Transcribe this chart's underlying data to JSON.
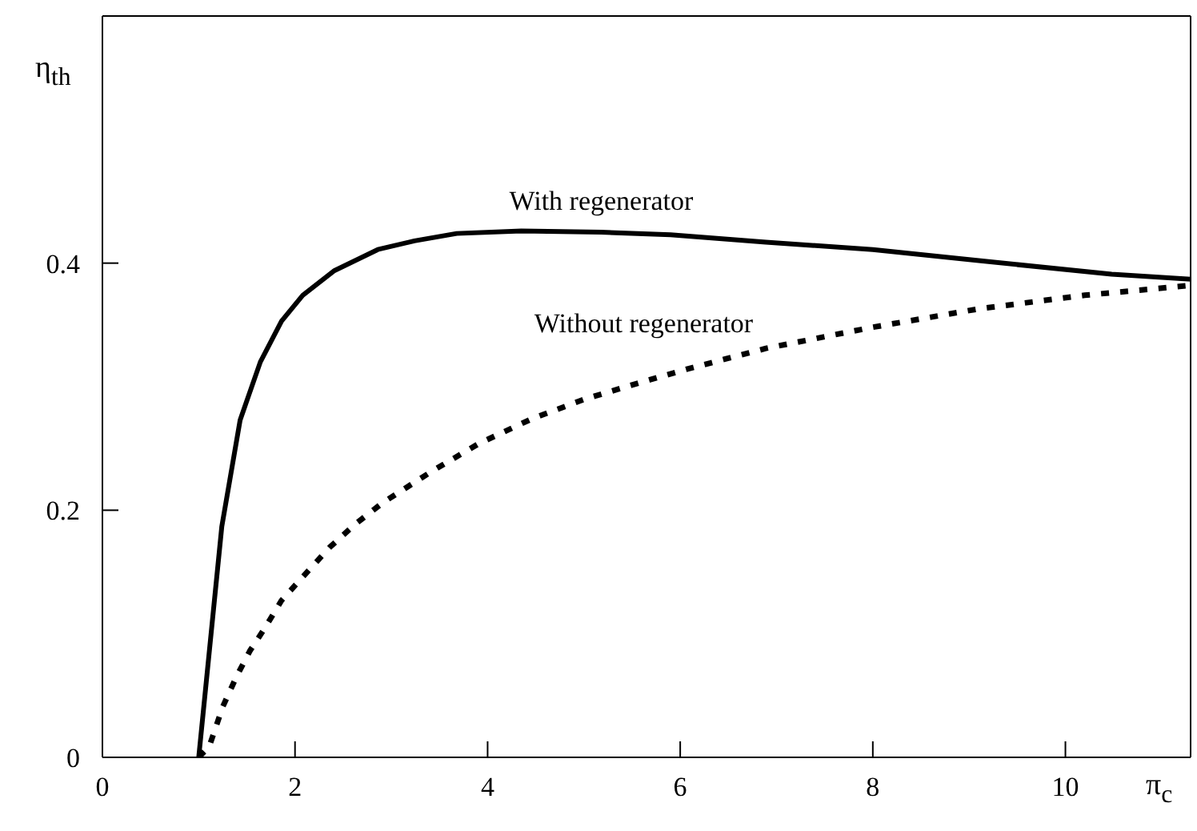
{
  "chart_data": {
    "type": "line",
    "xlabel": "π$_{c}$",
    "ylabel": "η$_{th}$",
    "xlim": [
      0,
      11.3
    ],
    "xticks": [
      0,
      2,
      4,
      6,
      8,
      10
    ],
    "ylim": [
      0,
      0.6
    ],
    "yticks": [
      0,
      0.2,
      0.4
    ],
    "marker": "none",
    "series": [
      {
        "name": "With regenerator",
        "color": "#000000",
        "line_style": "solid",
        "x": [
          1.0,
          1.24,
          1.43,
          1.64,
          1.86,
          2.08,
          2.41,
          2.86,
          3.24,
          3.68,
          4.35,
          5.18,
          5.9,
          6.89,
          8.0,
          9.1,
          10.48,
          11.3
        ],
        "values": [
          0,
          0.187,
          0.273,
          0.32,
          0.353,
          0.374,
          0.394,
          0.411,
          0.418,
          0.424,
          0.426,
          0.425,
          0.423,
          0.417,
          0.411,
          0.402,
          0.391,
          0.387
        ]
      },
      {
        "name": "Without regenerator",
        "color": "#000000",
        "line_style": "dotted",
        "x": [
          1.0,
          1.11,
          1.25,
          1.39,
          1.53,
          1.69,
          1.86,
          2.08,
          2.36,
          2.63,
          2.91,
          3.41,
          3.91,
          4.46,
          5.01,
          5.57,
          6.06,
          6.89,
          7.99,
          9.1,
          10.2,
          11.3
        ],
        "values": [
          0,
          0.009,
          0.041,
          0.065,
          0.086,
          0.105,
          0.127,
          0.146,
          0.17,
          0.189,
          0.206,
          0.231,
          0.254,
          0.274,
          0.29,
          0.303,
          0.314,
          0.331,
          0.348,
          0.363,
          0.374,
          0.382
        ]
      }
    ]
  }
}
